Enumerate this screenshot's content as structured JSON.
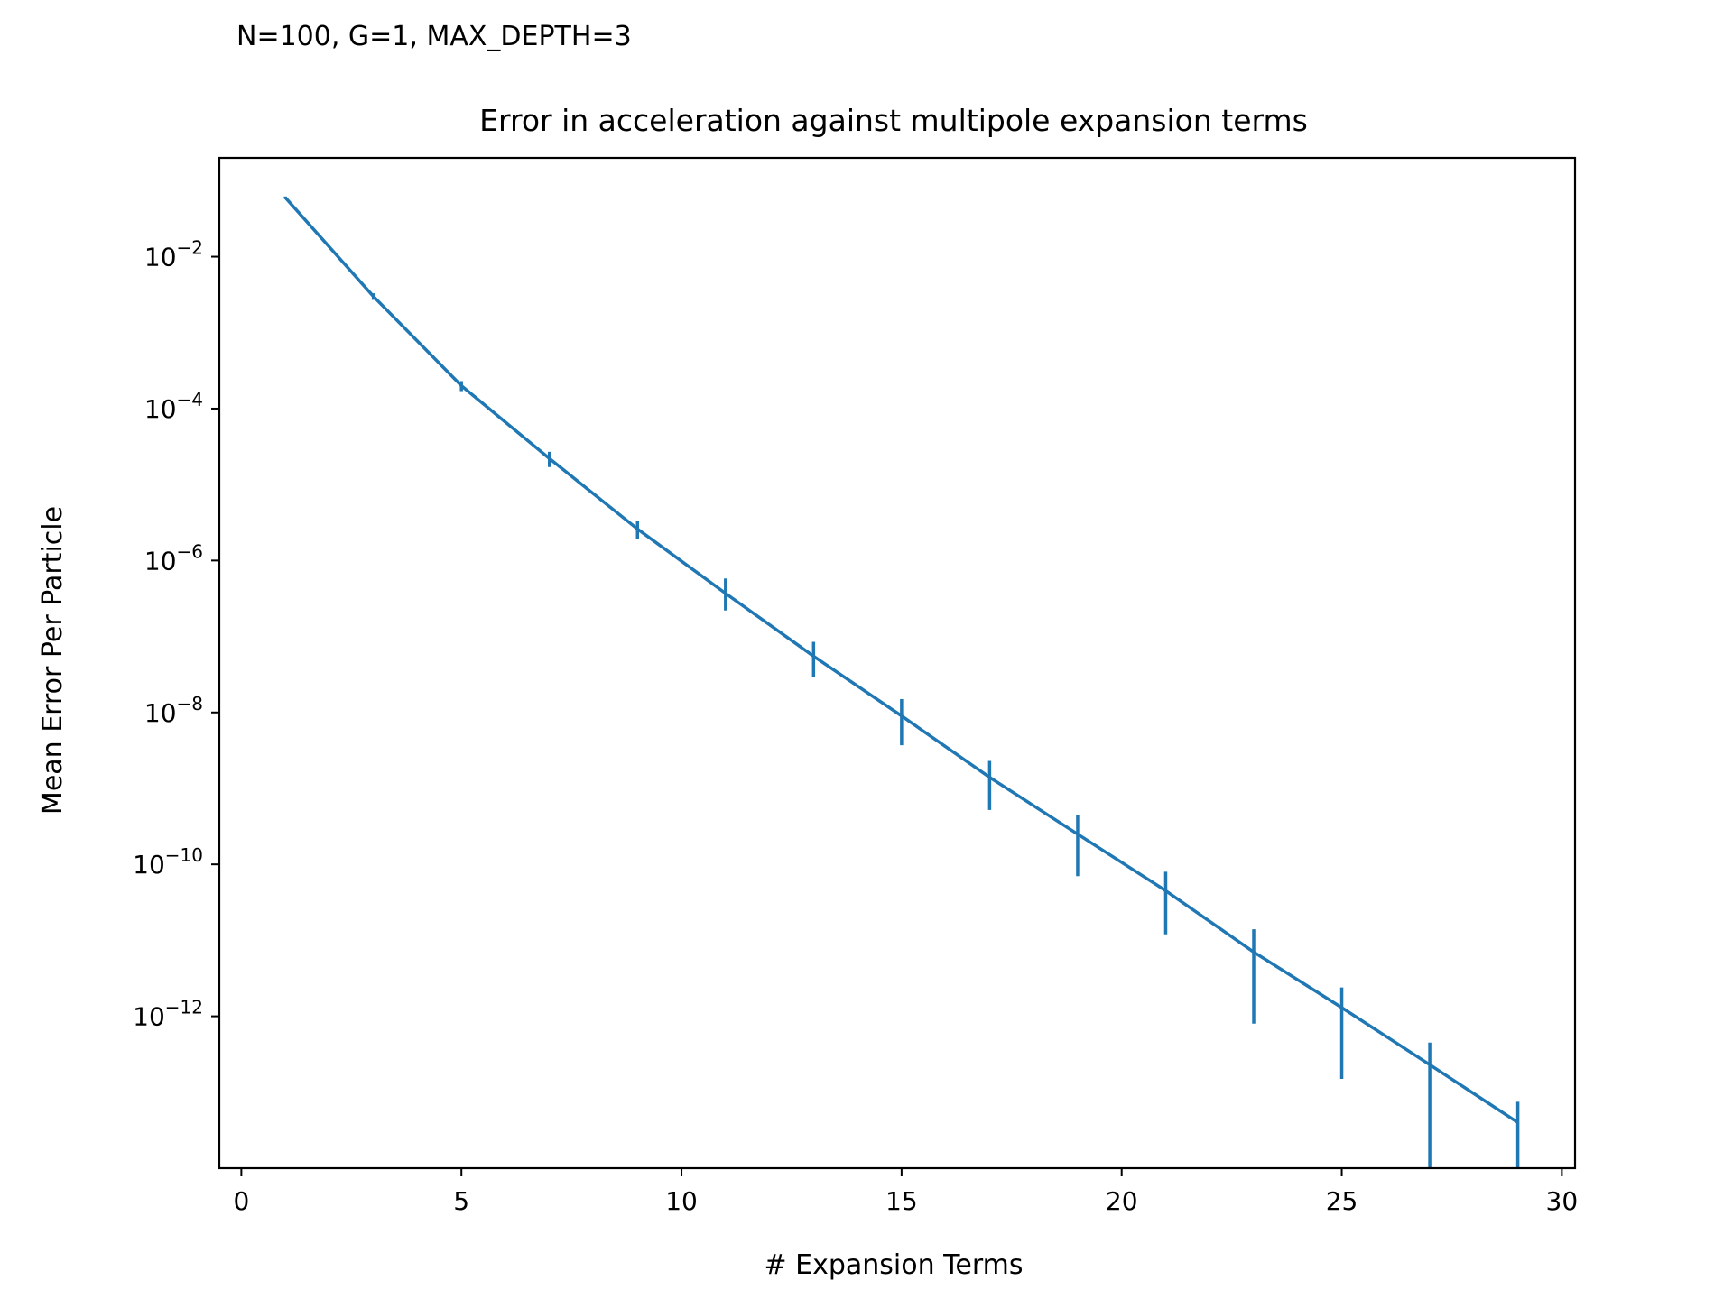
{
  "annotation": "N=100, G=1, MAX_DEPTH=3",
  "chart_data": {
    "type": "line",
    "title": "Error in acceleration against multipole expansion terms",
    "xlabel": "# Expansion Terms",
    "ylabel": "Mean Error Per Particle",
    "xlim": [
      -0.5,
      30.3
    ],
    "ylim": [
      1e-14,
      0.2
    ],
    "yscale": "log",
    "grid": false,
    "legend": "none",
    "color": "#1f77b4",
    "x_ticks": [
      0,
      5,
      10,
      15,
      20,
      25,
      30
    ],
    "y_ticks": [
      {
        "value": 0.01,
        "base": "10",
        "exp": "−2"
      },
      {
        "value": 0.0001,
        "base": "10",
        "exp": "−4"
      },
      {
        "value": 1e-06,
        "base": "10",
        "exp": "−6"
      },
      {
        "value": 1e-08,
        "base": "10",
        "exp": "−8"
      },
      {
        "value": 1e-10,
        "base": "10",
        "exp": "−10"
      },
      {
        "value": 1e-12,
        "base": "10",
        "exp": "−12"
      }
    ],
    "series": [
      {
        "x": [
          1,
          3,
          5,
          7,
          9,
          11,
          13,
          15,
          17,
          19,
          21,
          23,
          25,
          27,
          29
        ],
        "y": [
          0.06,
          0.003,
          0.0002,
          2.2e-05,
          2.6e-06,
          3.7e-07,
          5.5e-08,
          9e-09,
          1.4e-09,
          2.5e-10,
          4.5e-11,
          7e-12,
          1.3e-12,
          2.3e-13,
          4e-14
        ],
        "y_err_low": [
          0.058,
          0.0027,
          0.00017,
          1.7e-05,
          1.9e-06,
          2.2e-07,
          2.9e-08,
          3.7e-09,
          5.2e-10,
          7e-11,
          1.2e-11,
          8e-13,
          1.5e-13,
          1e-14,
          1e-14
        ],
        "y_err_high": [
          0.062,
          0.0033,
          0.00023,
          2.7e-05,
          3.3e-06,
          5.8e-07,
          8.5e-08,
          1.5e-08,
          2.3e-09,
          4.5e-10,
          8e-11,
          1.4e-11,
          2.4e-12,
          4.5e-13,
          7.5e-14
        ]
      }
    ]
  }
}
